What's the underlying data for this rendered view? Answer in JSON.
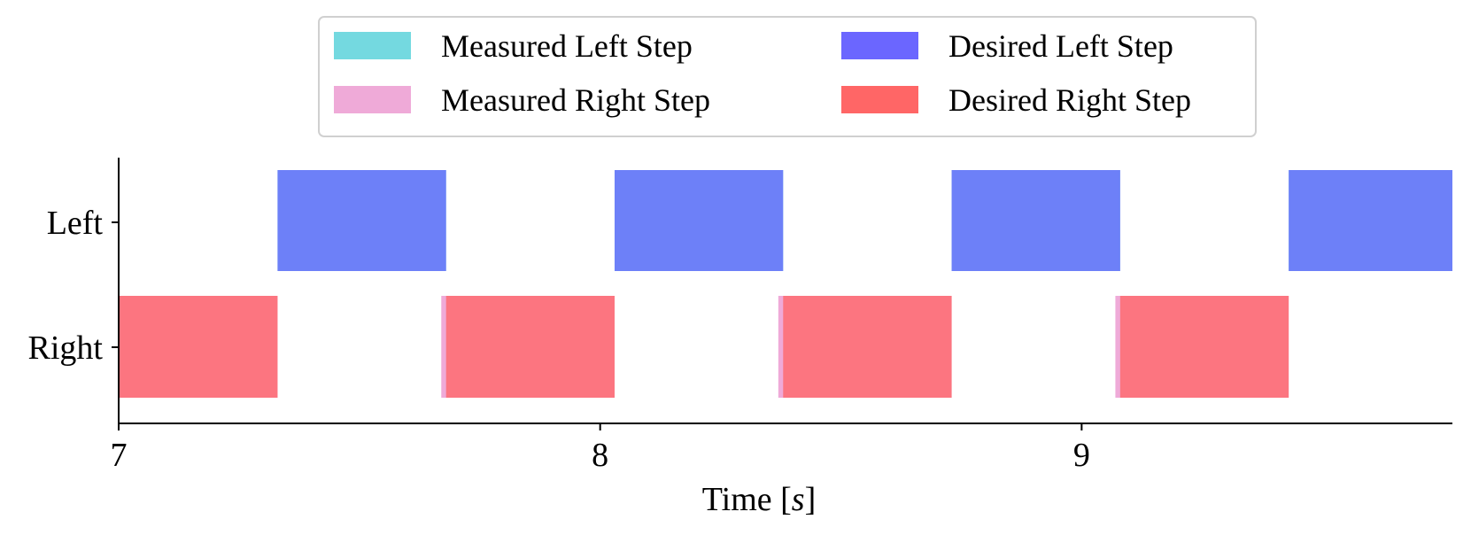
{
  "chart_data": {
    "type": "gantt-bar",
    "title": "",
    "xlabel": "Time [s]",
    "ylabel": "",
    "xlim": [
      7,
      9.77
    ],
    "categories": [
      "Left",
      "Right"
    ],
    "x_ticks": [
      7,
      8,
      9
    ],
    "grid": false,
    "legend": {
      "placement": "top-center",
      "columns": 2
    },
    "series": [
      {
        "name": "Measured Left Step",
        "color": "#74d9e0",
        "row": "Left",
        "intervals": [
          [
            7.33,
            7.68
          ],
          [
            8.03,
            8.38
          ],
          [
            8.73,
            9.08
          ],
          [
            9.43,
            9.77
          ]
        ]
      },
      {
        "name": "Measured Right Step",
        "color": "#efaad8",
        "row": "Right",
        "intervals": [
          [
            7.0,
            7.33
          ],
          [
            7.67,
            8.03
          ],
          [
            8.37,
            8.73
          ],
          [
            9.07,
            9.43
          ]
        ]
      },
      {
        "name": "Desired Left Step",
        "color": "#6b66ff",
        "row": "Left",
        "intervals": [
          [
            7.33,
            7.68
          ],
          [
            8.03,
            8.38
          ],
          [
            8.73,
            9.08
          ],
          [
            9.43,
            9.77
          ]
        ]
      },
      {
        "name": "Desired Right Step",
        "color": "#ff6666",
        "row": "Right",
        "intervals": [
          [
            7.0,
            7.33
          ],
          [
            7.68,
            8.03
          ],
          [
            8.38,
            8.73
          ],
          [
            9.08,
            9.43
          ]
        ]
      }
    ],
    "overlap_colors": {
      "Left": "#3059f5",
      "Right": "#f84659"
    }
  }
}
